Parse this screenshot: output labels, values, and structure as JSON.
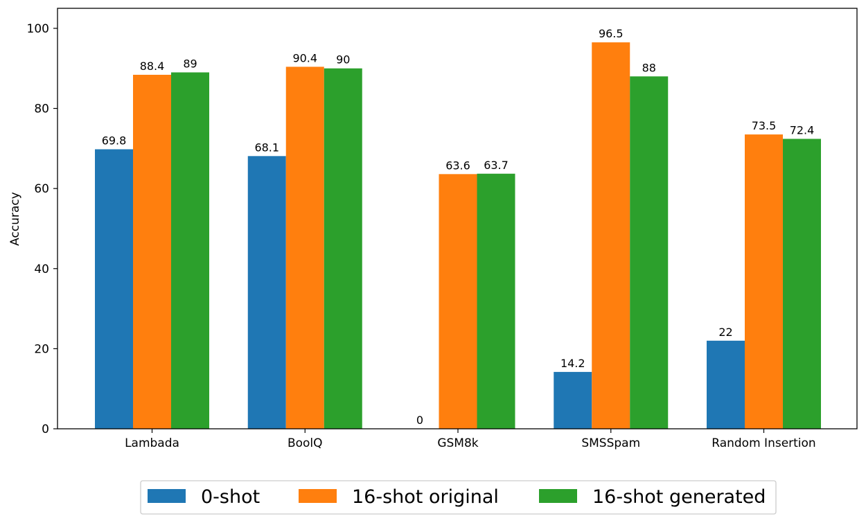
{
  "chart_data": {
    "type": "bar",
    "title": "",
    "xlabel": "",
    "ylabel": "Accuracy",
    "ylim": [
      0,
      105
    ],
    "yticks": [
      0,
      20,
      40,
      60,
      80,
      100
    ],
    "grid": false,
    "legend_position": "bottom",
    "categories": [
      "Lambada",
      "BoolQ",
      "GSM8k",
      "SMSSpam",
      "Random Insertion"
    ],
    "series": [
      {
        "name": "0-shot",
        "color": "#1f77b4",
        "values": [
          69.8,
          68.1,
          0,
          14.2,
          22
        ],
        "labels": [
          "69.8",
          "68.1",
          "0",
          "14.2",
          "22"
        ]
      },
      {
        "name": "16-shot original",
        "color": "#ff7f0e",
        "values": [
          88.4,
          90.4,
          63.6,
          96.5,
          73.5
        ],
        "labels": [
          "88.4",
          "90.4",
          "63.6",
          "96.5",
          "73.5"
        ]
      },
      {
        "name": "16-shot generated",
        "color": "#2ca02c",
        "values": [
          89,
          90,
          63.7,
          88,
          72.4
        ],
        "labels": [
          "89",
          "90",
          "63.7",
          "88",
          "72.4"
        ]
      }
    ]
  }
}
